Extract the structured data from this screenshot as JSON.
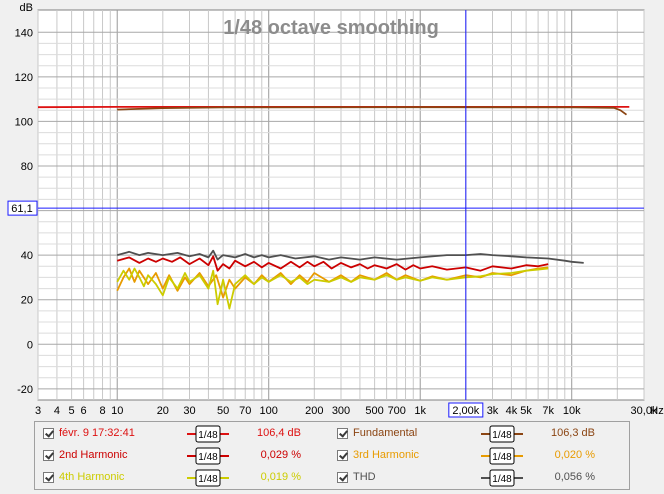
{
  "chart_data": {
    "type": "line",
    "title": "1/48 octave smoothing",
    "ylabel": "dB",
    "xlabel": "Hz",
    "xscale": "log",
    "xlim": [
      3,
      30000
    ],
    "ylim": [
      -25,
      150
    ],
    "yticks": [
      140,
      120,
      100,
      80,
      60,
      40,
      20,
      0,
      -20
    ],
    "xtick_labels": [
      {
        "v": 3,
        "t": "3"
      },
      {
        "v": 4,
        "t": "4"
      },
      {
        "v": 5,
        "t": "5"
      },
      {
        "v": 6,
        "t": "6"
      },
      {
        "v": 8,
        "t": "8"
      },
      {
        "v": 10,
        "t": "10"
      },
      {
        "v": 20,
        "t": "20"
      },
      {
        "v": 30,
        "t": "30"
      },
      {
        "v": 50,
        "t": "50"
      },
      {
        "v": 70,
        "t": "70"
      },
      {
        "v": 100,
        "t": "100"
      },
      {
        "v": 200,
        "t": "200"
      },
      {
        "v": 300,
        "t": "300"
      },
      {
        "v": 500,
        "t": "500"
      },
      {
        "v": 700,
        "t": "700"
      },
      {
        "v": 1000,
        "t": "1k"
      },
      {
        "v": 3000,
        "t": "3k"
      },
      {
        "v": 4000,
        "t": "4k"
      },
      {
        "v": 5000,
        "t": "5k"
      },
      {
        "v": 7000,
        "t": "7k"
      },
      {
        "v": 10000,
        "t": "10k"
      },
      {
        "v": 30000,
        "t": "30,0k"
      }
    ],
    "cursor": {
      "x": 2000,
      "x_label": "2,00k",
      "y": 61.1,
      "y_label": "61,1"
    },
    "grid": true,
    "series": [
      {
        "name": "févr. 9 17:32:41",
        "color": "#dd1111",
        "points": [
          [
            3,
            106.4
          ],
          [
            10,
            106.5
          ],
          [
            100,
            106.5
          ],
          [
            1000,
            106.5
          ],
          [
            10000,
            106.5
          ],
          [
            24000,
            106.5
          ]
        ]
      },
      {
        "name": "Fundamental",
        "color": "#8b4513",
        "points": [
          [
            10,
            105.3
          ],
          [
            20,
            106.0
          ],
          [
            50,
            106.3
          ],
          [
            1000,
            106.4
          ],
          [
            10000,
            106.3
          ],
          [
            19000,
            106.1
          ],
          [
            21000,
            105.0
          ],
          [
            23000,
            103.0
          ]
        ]
      },
      {
        "name": "2nd Harmonic",
        "color": "#cc0000",
        "points": [
          [
            10,
            37.5
          ],
          [
            12,
            39
          ],
          [
            14,
            36.5
          ],
          [
            16,
            38.5
          ],
          [
            18,
            37
          ],
          [
            20,
            38.5
          ],
          [
            23,
            37
          ],
          [
            26,
            39
          ],
          [
            30,
            36
          ],
          [
            35,
            38.5
          ],
          [
            40,
            35.5
          ],
          [
            43,
            39.5
          ],
          [
            46,
            33
          ],
          [
            50,
            36
          ],
          [
            55,
            34
          ],
          [
            60,
            37.5
          ],
          [
            70,
            35
          ],
          [
            80,
            37
          ],
          [
            90,
            34.5
          ],
          [
            100,
            36.5
          ],
          [
            120,
            34
          ],
          [
            140,
            37
          ],
          [
            160,
            34.5
          ],
          [
            180,
            37
          ],
          [
            200,
            35
          ],
          [
            230,
            37
          ],
          [
            260,
            34
          ],
          [
            300,
            36.5
          ],
          [
            350,
            34.5
          ],
          [
            400,
            36
          ],
          [
            450,
            34
          ],
          [
            500,
            35.5
          ],
          [
            600,
            34
          ],
          [
            700,
            36
          ],
          [
            800,
            33.5
          ],
          [
            900,
            35.5
          ],
          [
            1000,
            34
          ],
          [
            1200,
            35
          ],
          [
            1500,
            33.5
          ],
          [
            2000,
            34.5
          ],
          [
            2500,
            33
          ],
          [
            3000,
            35
          ],
          [
            4000,
            34
          ],
          [
            5000,
            35.5
          ],
          [
            6000,
            35
          ],
          [
            7000,
            36
          ]
        ]
      },
      {
        "name": "3rd Harmonic",
        "color": "#e89b00",
        "points": [
          [
            10,
            24
          ],
          [
            11,
            30
          ],
          [
            12,
            34
          ],
          [
            13,
            28
          ],
          [
            14,
            33
          ],
          [
            16,
            27
          ],
          [
            18,
            32
          ],
          [
            20,
            25
          ],
          [
            22,
            31
          ],
          [
            25,
            24
          ],
          [
            28,
            30
          ],
          [
            30,
            27
          ],
          [
            35,
            32
          ],
          [
            40,
            26
          ],
          [
            45,
            31
          ],
          [
            50,
            21
          ],
          [
            55,
            29
          ],
          [
            60,
            25
          ],
          [
            70,
            30
          ],
          [
            80,
            27
          ],
          [
            90,
            31
          ],
          [
            100,
            28
          ],
          [
            120,
            32
          ],
          [
            140,
            27
          ],
          [
            160,
            31
          ],
          [
            180,
            28
          ],
          [
            200,
            32
          ],
          [
            250,
            28
          ],
          [
            300,
            31
          ],
          [
            350,
            28
          ],
          [
            400,
            31
          ],
          [
            500,
            29
          ],
          [
            600,
            32
          ],
          [
            700,
            29
          ],
          [
            800,
            31
          ],
          [
            1000,
            28.5
          ],
          [
            1200,
            30.5
          ],
          [
            1500,
            29
          ],
          [
            2000,
            31
          ],
          [
            2500,
            30
          ],
          [
            3000,
            32
          ],
          [
            4000,
            31
          ],
          [
            5000,
            33
          ],
          [
            6000,
            34
          ],
          [
            7000,
            34.5
          ]
        ]
      },
      {
        "name": "4th Harmonic",
        "color": "#cccc00",
        "points": [
          [
            10,
            28
          ],
          [
            11,
            33
          ],
          [
            12,
            29
          ],
          [
            13,
            34
          ],
          [
            14,
            30
          ],
          [
            15,
            26
          ],
          [
            16,
            31
          ],
          [
            18,
            27
          ],
          [
            20,
            22
          ],
          [
            22,
            30
          ],
          [
            25,
            25
          ],
          [
            28,
            32
          ],
          [
            30,
            28
          ],
          [
            35,
            31
          ],
          [
            40,
            25
          ],
          [
            43,
            33
          ],
          [
            46,
            18
          ],
          [
            50,
            29
          ],
          [
            55,
            16
          ],
          [
            60,
            27
          ],
          [
            70,
            31
          ],
          [
            80,
            27
          ],
          [
            90,
            30
          ],
          [
            100,
            28
          ],
          [
            120,
            31
          ],
          [
            140,
            28
          ],
          [
            160,
            30
          ],
          [
            180,
            27
          ],
          [
            200,
            29
          ],
          [
            250,
            28
          ],
          [
            300,
            30
          ],
          [
            350,
            28
          ],
          [
            400,
            30
          ],
          [
            500,
            29
          ],
          [
            600,
            31
          ],
          [
            700,
            29
          ],
          [
            800,
            30
          ],
          [
            1000,
            28.5
          ],
          [
            1200,
            30
          ],
          [
            1500,
            29
          ],
          [
            2000,
            30
          ],
          [
            2500,
            30.5
          ],
          [
            3000,
            31.5
          ],
          [
            4000,
            32
          ],
          [
            5000,
            33
          ],
          [
            6000,
            33.5
          ],
          [
            7000,
            34
          ]
        ]
      },
      {
        "name": "THD",
        "color": "#505050",
        "points": [
          [
            10,
            40
          ],
          [
            12,
            41.5
          ],
          [
            14,
            40
          ],
          [
            16,
            41
          ],
          [
            20,
            40
          ],
          [
            25,
            41
          ],
          [
            30,
            39.5
          ],
          [
            35,
            40.5
          ],
          [
            40,
            39
          ],
          [
            43,
            42
          ],
          [
            46,
            38
          ],
          [
            50,
            40
          ],
          [
            60,
            39
          ],
          [
            70,
            40.5
          ],
          [
            80,
            39
          ],
          [
            90,
            40
          ],
          [
            100,
            39
          ],
          [
            120,
            40
          ],
          [
            150,
            38.5
          ],
          [
            200,
            39.5
          ],
          [
            250,
            38
          ],
          [
            300,
            39
          ],
          [
            400,
            38
          ],
          [
            500,
            39
          ],
          [
            700,
            38
          ],
          [
            1000,
            39
          ],
          [
            1500,
            40
          ],
          [
            2000,
            40
          ],
          [
            2500,
            40.5
          ],
          [
            3000,
            40
          ],
          [
            4000,
            39.5
          ],
          [
            5000,
            39
          ],
          [
            7000,
            38.5
          ],
          [
            9000,
            37.5
          ],
          [
            10000,
            37
          ],
          [
            12000,
            36.5
          ]
        ]
      }
    ]
  },
  "legend": {
    "items": [
      {
        "name": "févr. 9 17:32:41",
        "value": "106,4 dB",
        "color": "#dd1111",
        "smooth": "1/48"
      },
      {
        "name": "Fundamental",
        "value": "106,3 dB",
        "color": "#8b4513",
        "smooth": "1/48"
      },
      {
        "name": "2nd Harmonic",
        "value": "0,029 %",
        "color": "#cc0000",
        "smooth": "1/48"
      },
      {
        "name": "3rd Harmonic",
        "value": "0,020 %",
        "color": "#e89b00",
        "smooth": "1/48"
      },
      {
        "name": "4th Harmonic",
        "value": "0,019 %",
        "color": "#cccc00",
        "smooth": "1/48"
      },
      {
        "name": "THD",
        "value": "0,056 %",
        "color": "#505050",
        "smooth": "1/48"
      }
    ]
  }
}
